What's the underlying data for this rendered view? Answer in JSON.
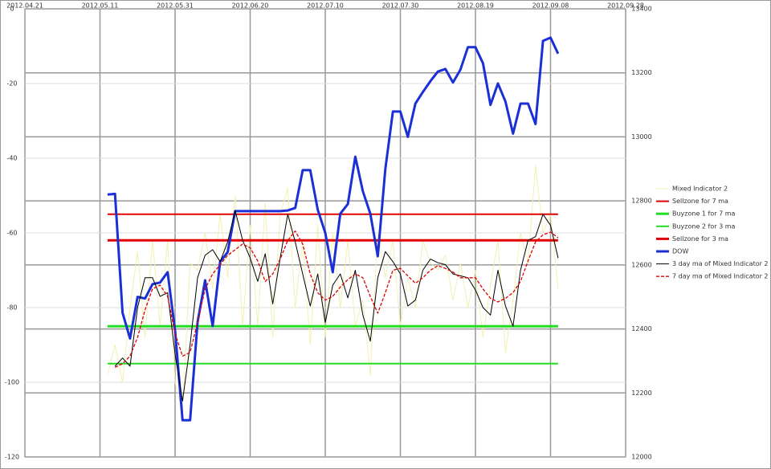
{
  "chart_data": {
    "type": "line",
    "x": [
      "2012.05.13",
      "2012.05.15",
      "2012.05.17",
      "2012.05.19",
      "2012.05.21",
      "2012.05.23",
      "2012.05.25",
      "2012.05.27",
      "2012.05.29",
      "2012.05.31",
      "2012.06.02",
      "2012.06.04",
      "2012.06.06",
      "2012.06.08",
      "2012.06.10",
      "2012.06.12",
      "2012.06.14",
      "2012.06.16",
      "2012.06.18",
      "2012.06.20",
      "2012.06.22",
      "2012.06.24",
      "2012.06.26",
      "2012.06.28",
      "2012.06.30",
      "2012.07.02",
      "2012.07.04",
      "2012.07.06",
      "2012.07.08",
      "2012.07.10",
      "2012.07.12",
      "2012.07.14",
      "2012.07.16",
      "2012.07.18",
      "2012.07.20",
      "2012.07.22",
      "2012.07.24",
      "2012.07.26",
      "2012.07.28",
      "2012.07.30",
      "2012.08.01",
      "2012.08.03",
      "2012.08.05",
      "2012.08.07",
      "2012.08.09",
      "2012.08.11",
      "2012.08.13",
      "2012.08.15",
      "2012.08.17",
      "2012.08.19",
      "2012.08.21",
      "2012.08.23",
      "2012.08.25",
      "2012.08.27",
      "2012.08.29",
      "2012.08.31",
      "2012.09.02",
      "2012.09.04",
      "2012.09.06",
      "2012.09.08",
      "2012.09.10"
    ],
    "xlim": [
      "2012.04.21",
      "2012.09.28"
    ],
    "xticks": [
      "2012.04.21",
      "2012.05.11",
      "2012.05.31",
      "2012.06.20",
      "2012.07.10",
      "2012.07.30",
      "2012.08.19",
      "2012.09.08",
      "2012.09.28"
    ],
    "ylim": [
      -120,
      0
    ],
    "yticks": [
      0,
      -20,
      -40,
      -60,
      -80,
      -100,
      -120
    ],
    "y2lim": [
      12000,
      13400
    ],
    "y2ticks": [
      12000,
      12200,
      12400,
      12600,
      12800,
      13000,
      13200,
      13400
    ],
    "grid": true,
    "legend": "right",
    "series": [
      {
        "name": "Mixed Indicator 2",
        "color": "#f3f0b0",
        "values": [
          -98,
          -90,
          -100,
          -80,
          -65,
          -88,
          -62,
          -85,
          -62,
          -100,
          -108,
          -68,
          -70,
          -60,
          -75,
          -55,
          -72,
          -50,
          -85,
          -58,
          -85,
          -52,
          -88,
          -55,
          -48,
          -80,
          -62,
          -90,
          -58,
          -88,
          -60,
          -80,
          -62,
          -85,
          -78,
          -98,
          -60,
          -72,
          -62,
          -85,
          -72,
          -80,
          -62,
          -68,
          -70,
          -66,
          -78,
          -68,
          -80,
          -70,
          -88,
          -74,
          -62,
          -92,
          -78,
          -60,
          -68,
          -42,
          -60,
          -55,
          -75
        ]
      },
      {
        "name": "Sellzone for 7 ma",
        "color": "#e00000",
        "x": [
          "2012.05.13",
          "2012.09.10"
        ],
        "values": [
          -55,
          -55
        ]
      },
      {
        "name": "Buyzone 1 for 7 ma",
        "color": "#22dd22",
        "x": [
          "2012.05.13",
          "2012.09.10"
        ],
        "values": [
          -85,
          -85
        ]
      },
      {
        "name": "Buyzone 2 for 3 ma",
        "color": "#22dd22",
        "x": [
          "2012.05.13",
          "2012.09.10"
        ],
        "values": [
          -95,
          -95
        ]
      },
      {
        "name": "Sellzone for 3 ma",
        "color": "#e00000",
        "x": [
          "2012.05.13",
          "2012.09.10"
        ],
        "values": [
          -62,
          -62
        ]
      },
      {
        "name": "DOW",
        "color": "#1a2fd6",
        "axis": "y2",
        "values": [
          12820,
          12822,
          12450,
          12370,
          12500,
          12495,
          12540,
          12545,
          12577,
          12395,
          12115,
          12115,
          12421,
          12552,
          12409,
          12610,
          12640,
          12768,
          12768,
          12768,
          12768,
          12768,
          12768,
          12768,
          12770,
          12778,
          12896,
          12896,
          12773,
          12700,
          12577,
          12760,
          12790,
          12938,
          12830,
          12760,
          12627,
          12900,
          13079,
          13079,
          13000,
          13104,
          13140,
          13174,
          13204,
          13212,
          13170,
          13210,
          13280,
          13280,
          13230,
          13100,
          13167,
          13110,
          13010,
          13104,
          13104,
          13040,
          13300,
          13310,
          13260
        ]
      },
      {
        "name": "3 day ma of Mixed Indicator 2",
        "color": "#000000",
        "values": [
          null,
          -95.7,
          -93.5,
          -95.7,
          -80,
          -72,
          -72,
          -77,
          -76,
          -92.5,
          -105,
          -90,
          -72,
          -66,
          -64.5,
          -67.7,
          -62.4,
          -54,
          -62,
          -66.7,
          -73,
          -65.6,
          -79,
          -66.7,
          -55,
          -62.4,
          -71,
          -79.6,
          -71,
          -84,
          -74,
          -71,
          -77.4,
          -70,
          -82,
          -89,
          -72,
          -65,
          -67.7,
          -71,
          -79.6,
          -78,
          -70,
          -67,
          -68,
          -68.5,
          -71,
          -71.5,
          -72,
          -75.3,
          -80,
          -82,
          -70,
          -79.6,
          -85,
          -70,
          -62,
          -61,
          -55,
          -58,
          -66.7
        ]
      },
      {
        "name": "7 day ma of Mixed Indicator 2",
        "color": "#e00000",
        "style": "dashed",
        "values": [
          null,
          -96,
          -95,
          -93,
          -88,
          -80.6,
          -75,
          -74,
          -77,
          -87,
          -93,
          -92,
          -84,
          -75,
          -71,
          -68.5,
          -66,
          -64.5,
          -63,
          -64,
          -67.5,
          -73,
          -71,
          -67,
          -62,
          -59.5,
          -63,
          -71,
          -76,
          -78,
          -77,
          -74.5,
          -72.5,
          -71,
          -72,
          -77,
          -81.5,
          -76,
          -70,
          -69.5,
          -71.5,
          -73.5,
          -72,
          -70,
          -68.8,
          -69.5,
          -70.5,
          -72,
          -72,
          -72,
          -75,
          -77.5,
          -78.5,
          -77.5,
          -76,
          -73,
          -67.5,
          -62.4,
          -60.5,
          -59.8,
          -61.3
        ]
      }
    ]
  }
}
